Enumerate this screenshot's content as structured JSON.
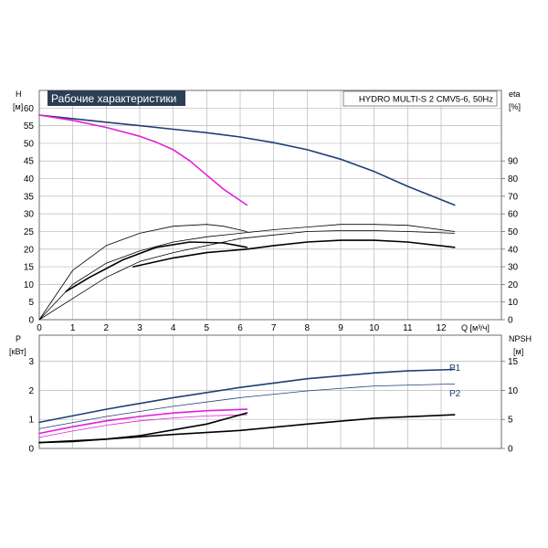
{
  "chart_data": [
    {
      "type": "line",
      "title": "Рабочие характеристики",
      "model": "HYDRO MULTI-S 2 CMV5-6, 50Hz",
      "xlabel": "Q [м³/ч]",
      "x_ticks": [
        0,
        1,
        2,
        3,
        4,
        5,
        6,
        7,
        8,
        9,
        10,
        11,
        12
      ],
      "xlim": [
        0,
        13.8
      ],
      "y_left": {
        "label": "H",
        "unit": "[м]",
        "lim": [
          0,
          65
        ],
        "ticks": [
          0,
          5,
          10,
          15,
          20,
          25,
          30,
          35,
          40,
          45,
          50,
          55,
          60
        ]
      },
      "y_right": {
        "label": "eta",
        "unit": "[%]",
        "lim": [
          0,
          130
        ],
        "ticks": [
          0,
          10,
          20,
          30,
          40,
          50,
          60,
          70,
          80,
          90
        ]
      },
      "grid": true,
      "series": [
        {
          "axis": "left",
          "color": "#1f3f73",
          "width": 1.6,
          "x": [
            0,
            1,
            2,
            3,
            4,
            5,
            6,
            7,
            8,
            9,
            10,
            11,
            12.4
          ],
          "y": [
            58,
            57,
            56,
            55,
            54,
            53,
            51.8,
            50.2,
            48.2,
            45.5,
            42,
            37.8,
            32.5
          ]
        },
        {
          "axis": "left",
          "color": "#e21fd8",
          "width": 1.6,
          "x": [
            0,
            1,
            2,
            3,
            3.5,
            4,
            4.5,
            5,
            5.5,
            6.2
          ],
          "y": [
            58,
            56.5,
            54.5,
            52,
            50.3,
            48.2,
            45,
            41,
            37,
            32.5
          ]
        },
        {
          "axis": "right",
          "color": "#000000",
          "width": 1.6,
          "x": [
            0.8,
            1.5,
            2.5,
            3.5,
            4.5,
            5.5,
            6.2
          ],
          "y": [
            16,
            24,
            34,
            41,
            44,
            43.5,
            41
          ]
        },
        {
          "axis": "right",
          "color": "#000000",
          "width": 0.8,
          "x": [
            0,
            1,
            2,
            3,
            4,
            5,
            5.5,
            6.2
          ],
          "y": [
            0,
            28,
            42,
            49,
            53,
            54,
            53,
            50
          ]
        },
        {
          "axis": "right",
          "color": "#000000",
          "width": 1.6,
          "x": [
            2.8,
            4,
            5,
            6.2,
            7,
            8,
            9,
            10,
            11,
            12.4
          ],
          "y": [
            30,
            35,
            38,
            40,
            42,
            44,
            45,
            45,
            44,
            41
          ]
        },
        {
          "axis": "right",
          "color": "#000000",
          "width": 0.8,
          "x": [
            0,
            1,
            2,
            3,
            4,
            5,
            6,
            7,
            8,
            9,
            10,
            11,
            12.4
          ],
          "y": [
            0,
            12,
            24,
            33,
            38,
            42,
            46,
            48,
            50,
            50.5,
            50.5,
            50,
            49
          ]
        },
        {
          "axis": "right",
          "color": "#000000",
          "width": 0.8,
          "x": [
            0,
            1,
            2,
            3,
            4,
            5,
            6,
            7,
            8,
            9,
            10,
            11,
            12.4
          ],
          "y": [
            0,
            20,
            32,
            39,
            44,
            47,
            49,
            51,
            52.5,
            54,
            54,
            53.5,
            50
          ]
        }
      ]
    },
    {
      "type": "line",
      "xlabel": "",
      "x_ticks": [
        0,
        1,
        2,
        3,
        4,
        5,
        6,
        7,
        8,
        9,
        10,
        11,
        12
      ],
      "xlim": [
        0,
        13.8
      ],
      "y_left": {
        "label": "P",
        "unit": "[кВт]",
        "lim": [
          0,
          3.9
        ],
        "ticks": [
          0,
          1,
          2,
          3
        ]
      },
      "y_right": {
        "label": "NPSH",
        "unit": "[м]",
        "lim": [
          0,
          19.5
        ],
        "ticks": [
          0,
          5,
          10,
          15
        ]
      },
      "grid": true,
      "series": [
        {
          "name": "P1",
          "axis": "left",
          "color": "#1f3f73",
          "width": 1.6,
          "x": [
            0,
            2,
            4,
            6,
            8,
            10,
            11,
            12.4
          ],
          "y": [
            0.9,
            1.35,
            1.75,
            2.1,
            2.4,
            2.6,
            2.67,
            2.72
          ]
        },
        {
          "name": "P2",
          "axis": "left",
          "color": "#1f3f73",
          "width": 0.8,
          "x": [
            0,
            2,
            4,
            6,
            8,
            10,
            12.4
          ],
          "y": [
            0.68,
            1.1,
            1.45,
            1.75,
            1.98,
            2.15,
            2.22
          ]
        },
        {
          "axis": "left",
          "color": "#e21fd8",
          "width": 1.6,
          "x": [
            0,
            1,
            2,
            3,
            4,
            5,
            6.2
          ],
          "y": [
            0.52,
            0.75,
            0.95,
            1.1,
            1.22,
            1.3,
            1.35
          ]
        },
        {
          "axis": "left",
          "color": "#e21fd8",
          "width": 0.8,
          "x": [
            0,
            1,
            2,
            3,
            4,
            5,
            6.2
          ],
          "y": [
            0.38,
            0.6,
            0.8,
            0.95,
            1.05,
            1.12,
            1.16
          ]
        },
        {
          "axis": "right",
          "color": "#000000",
          "width": 1.6,
          "x": [
            0,
            2,
            4,
            6,
            8,
            10,
            12.4
          ],
          "y": [
            1,
            1.6,
            2.4,
            3.1,
            4.2,
            5.2,
            5.8
          ]
        },
        {
          "axis": "right",
          "color": "#000000",
          "width": 1.6,
          "x": [
            0,
            1,
            2,
            3,
            4,
            5,
            6.2
          ],
          "y": [
            1,
            1.2,
            1.6,
            2.2,
            3.2,
            4.2,
            6.1
          ]
        }
      ]
    }
  ],
  "colors": {
    "grid": "#b9b9b9",
    "frame": "#6e6e6e",
    "title_bg": "#2b3e55"
  }
}
